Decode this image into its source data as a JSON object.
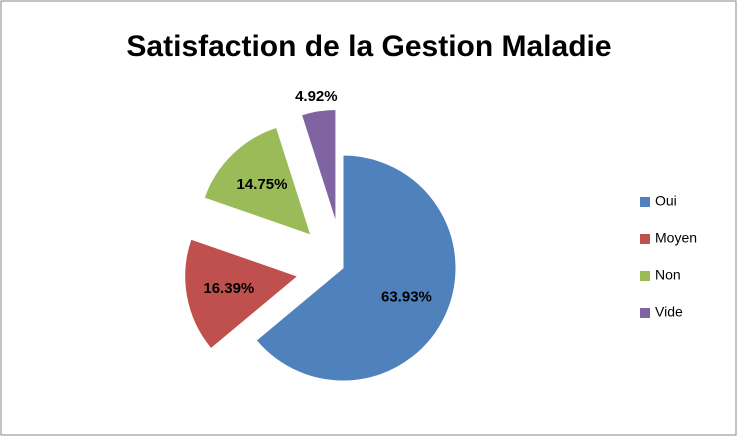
{
  "chart_data": {
    "type": "pie",
    "title": "Satisfaction de la Gestion Maladie",
    "categories": [
      "Oui",
      "Moyen",
      "Non",
      "Vide"
    ],
    "values": [
      63.93,
      16.39,
      14.75,
      4.92
    ],
    "value_labels": [
      "63.93%",
      "16.39%",
      "14.75%",
      "4.92%"
    ],
    "colors": [
      "#4f81bd",
      "#c0504d",
      "#9bbb59",
      "#8064a2"
    ],
    "legend": "right"
  }
}
